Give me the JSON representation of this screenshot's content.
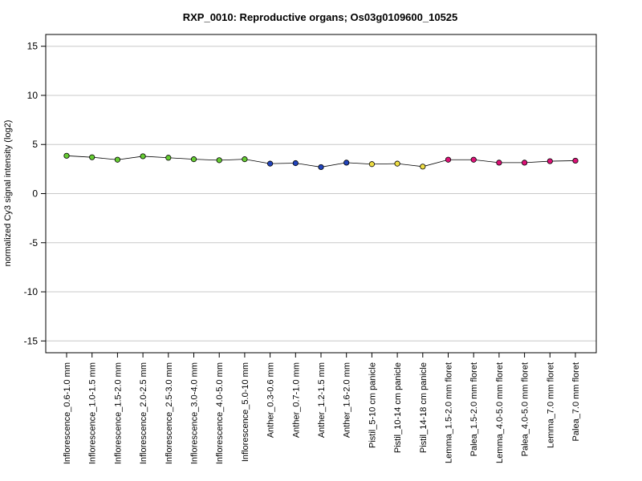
{
  "chart_data": {
    "type": "line",
    "title": "RXP_0010: Reproductive organs; Os03g0109600_10525",
    "xlabel": "",
    "ylabel": "normalized Cy3 signal intensity (log2)",
    "ylim": [
      -16.2,
      16.2
    ],
    "yticks": [
      -15,
      -10,
      -5,
      0,
      5,
      10,
      15
    ],
    "grid": "horizontal",
    "categories": [
      "Inflorescence_0.6-1.0 mm",
      "Inflorescence_1.0-1.5 mm",
      "Inflorescence_1.5-2.0 mm",
      "Inflorescence_2.0-2.5 mm",
      "Inflorescence_2.5-3.0 mm",
      "Inflorescence_3.0-4.0 mm",
      "Inflorescence_4.0-5.0 mm",
      "Inflorescence_5.0-10 mm",
      "Anther_0.3-0.6 mm",
      "Anther_0.7-1.0 mm",
      "Anther_1.2-1.5 mm",
      "Anther_1.6-2.0 mm",
      "Pistil_5-10 cm panicle",
      "Pistil_10-14 cm panicle",
      "Pistil_14-18 cm panicle",
      "Lemma_1.5-2.0 mm floret",
      "Palea_1.5-2.0 mm floret",
      "Lemma_4.0-5.0 mm floret",
      "Palea_4.0-5.0 mm floret",
      "Lemma_7.0 mm floret",
      "Palea_7.0 mm floret"
    ],
    "values": [
      3.85,
      3.7,
      3.45,
      3.8,
      3.65,
      3.5,
      3.4,
      3.5,
      3.05,
      3.1,
      2.7,
      3.15,
      3.0,
      3.05,
      2.75,
      3.45,
      3.45,
      3.15,
      3.15,
      3.3,
      3.35
    ],
    "colors": [
      "#66cc33",
      "#66cc33",
      "#66cc33",
      "#66cc33",
      "#66cc33",
      "#66cc33",
      "#66cc33",
      "#66cc33",
      "#2244bb",
      "#2244bb",
      "#2244bb",
      "#2244bb",
      "#eedd44",
      "#eedd44",
      "#eedd44",
      "#dd1177",
      "#dd1177",
      "#dd1177",
      "#dd1177",
      "#dd1177",
      "#dd1177"
    ]
  }
}
